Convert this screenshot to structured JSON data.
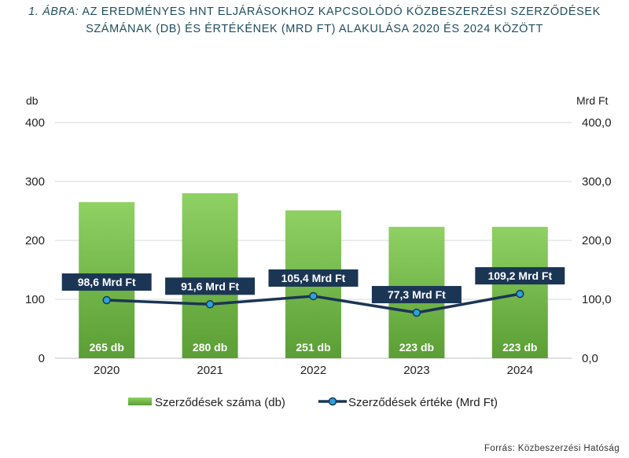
{
  "title": {
    "label": "1. ÁBRA:",
    "text": "AZ EREDMÉNYES HNT ELJÁRÁSOKHOZ KAPCSOLÓDÓ KÖZBESZERZÉSI SZERZŐDÉSEK SZÁMÁNAK (DB) ÉS ÉRTÉKÉNEK (MRD FT) ALAKULÁSA 2020 ÉS 2024 KÖZÖTT"
  },
  "source": "Forrás: Közbeszerzési Hatóság",
  "colors": {
    "bar_top": "#8fd163",
    "bar_bottom": "#5a9e35",
    "line": "#1b3554",
    "marker": "#2aa3dd",
    "label_bg": "#1b3554",
    "grid": "#d9d9d9"
  },
  "chart_data": {
    "type": "bar+line",
    "categories": [
      "2020",
      "2021",
      "2022",
      "2023",
      "2024"
    ],
    "series": [
      {
        "name": "Szerződések száma (db)",
        "type": "bar",
        "axis": "left",
        "values": [
          265,
          280,
          251,
          223,
          223
        ],
        "labels": [
          "265 db",
          "280 db",
          "251 db",
          "223 db",
          "223 db"
        ]
      },
      {
        "name": "Szerződések értéke (Mrd Ft)",
        "type": "line",
        "axis": "right",
        "values": [
          98.6,
          91.6,
          105.4,
          77.3,
          109.2
        ],
        "labels": [
          "98,6 Mrd Ft",
          "91,6 Mrd Ft",
          "105,4 Mrd Ft",
          "77,3 Mrd Ft",
          "109,2 Mrd Ft"
        ]
      }
    ],
    "y_left": {
      "label": "db",
      "ylim": [
        0,
        400
      ],
      "ticks": [
        0,
        100,
        200,
        300,
        400
      ],
      "tick_labels": [
        "0",
        "100",
        "200",
        "300",
        "400"
      ]
    },
    "y_right": {
      "label": "Mrd Ft",
      "ylim": [
        0,
        400
      ],
      "ticks": [
        0,
        100,
        200,
        300,
        400
      ],
      "tick_labels": [
        "0,0",
        "100,0",
        "200,0",
        "300,0",
        "400,0"
      ]
    },
    "grid": true,
    "legend_position": "bottom"
  }
}
